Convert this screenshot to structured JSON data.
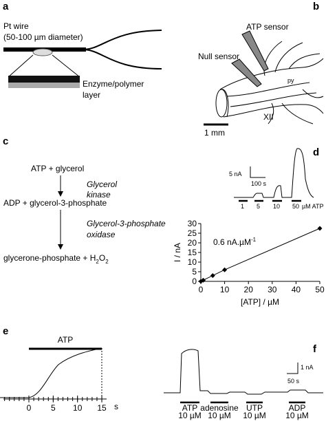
{
  "panels": {
    "a": {
      "label": "a",
      "wire": "Pt wire",
      "diameter": "(50-100 µm diameter)",
      "layer": [
        "Enzyme/polymer",
        "layer"
      ]
    },
    "b": {
      "label": "b",
      "atp_sensor": "ATP sensor",
      "null_sensor": "Null sensor",
      "py": "py",
      "xii": "XII",
      "scale": "1 mm"
    },
    "c": {
      "label": "c",
      "substrate": "ATP + glycerol",
      "enzyme1": [
        "Glycerol",
        "kinase"
      ],
      "intermediate": "ADP + glycerol-3-phosphate",
      "enzyme2": [
        "Glycerol-3-phosphate",
        "oxidase"
      ],
      "product": [
        "glycerone-phosphate + H",
        "2",
        "O",
        "2"
      ]
    },
    "d": {
      "label": "d",
      "inset": {
        "y_scale": "5 nA",
        "x_scale": "100 s",
        "concentrations": [
          "1",
          "5",
          "10",
          "50"
        ],
        "unit": "µM ATP"
      }
    },
    "e": {
      "label": "e",
      "stimulus": "ATP",
      "xticks": [
        0,
        5,
        10,
        15
      ],
      "unit": "s"
    },
    "f": {
      "label": "f",
      "y_scale": "1 nA",
      "x_scale": "50 s",
      "stimuli": [
        [
          "ATP",
          "10 µM"
        ],
        [
          "adenosine",
          "10 µM"
        ],
        [
          "UTP",
          "10 µM"
        ],
        [
          "ADP",
          "10 µM"
        ]
      ]
    }
  },
  "chart_data": {
    "type": "scatter",
    "x": [
      0,
      1,
      5,
      10,
      50
    ],
    "series": [
      {
        "color": "#000000",
        "values": [
          0,
          0.6,
          3,
          6,
          27.5
        ]
      }
    ],
    "xlim": [
      0,
      50
    ],
    "ylim": [
      0,
      30
    ],
    "xticks": [
      0,
      10,
      20,
      30,
      40,
      50
    ],
    "yticks": [
      0,
      5,
      10,
      15,
      20,
      25,
      30
    ],
    "x_label": "[ATP] / µM",
    "y_label": "I / nA",
    "annotation": [
      "0.6 nA.µM",
      "-1"
    ]
  }
}
